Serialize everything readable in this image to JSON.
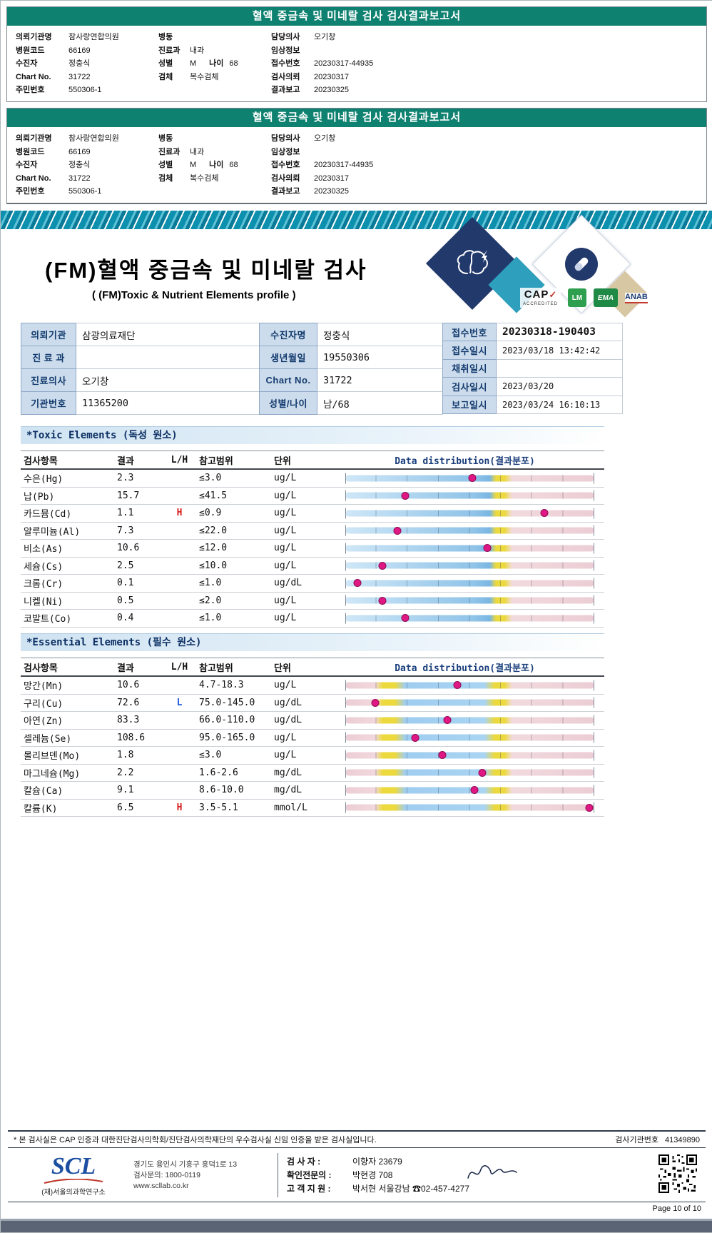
{
  "report_header": {
    "title": "혈액 중금속 및 미네랄 검사 검사결과보고서"
  },
  "header_blocks": [
    {
      "left": [
        {
          "label": "의뢰기관명",
          "value": "참사랑연합의원"
        },
        {
          "label": "병원코드",
          "value": "66169"
        },
        {
          "label": "수진자",
          "value": "정충식"
        },
        {
          "label": "Chart No.",
          "value": "31722"
        },
        {
          "label": "주민번호",
          "value": "550306-1"
        }
      ],
      "mid": [
        {
          "label": "병동",
          "value": ""
        },
        {
          "label": "진료과",
          "value": "내과"
        },
        {
          "label": "성별",
          "value": "M",
          "label2": "나이",
          "value2": "68"
        },
        {
          "label": "검체",
          "value": "복수검체"
        }
      ],
      "right": [
        {
          "label": "담당의사",
          "value": "오기창"
        },
        {
          "label": "임상정보",
          "value": ""
        },
        {
          "label": "접수번호",
          "value": "20230317-44935"
        },
        {
          "label": "검사의뢰",
          "value": "20230317"
        },
        {
          "label": "결과보고",
          "value": "20230325"
        }
      ]
    },
    {
      "left": [
        {
          "label": "의뢰기관명",
          "value": "참사랑연합의원"
        },
        {
          "label": "병원코드",
          "value": "66169"
        },
        {
          "label": "수진자",
          "value": "정충식"
        },
        {
          "label": "Chart No.",
          "value": "31722"
        },
        {
          "label": "주민번호",
          "value": "550306-1"
        }
      ],
      "mid": [
        {
          "label": "병동",
          "value": ""
        },
        {
          "label": "진료과",
          "value": "내과"
        },
        {
          "label": "성별",
          "value": "M",
          "label2": "나이",
          "value2": "68"
        },
        {
          "label": "검체",
          "value": "복수검체"
        }
      ],
      "right": [
        {
          "label": "담당의사",
          "value": "오기창"
        },
        {
          "label": "임상정보",
          "value": ""
        },
        {
          "label": "접수번호",
          "value": "20230317-44935"
        },
        {
          "label": "검사의뢰",
          "value": "20230317"
        },
        {
          "label": "결과보고",
          "value": "20230325"
        }
      ]
    }
  ],
  "deco": {
    "cap_label": "CAP",
    "cap_check": "✓",
    "cap_sub": "ACCREDITED",
    "green_badge_1": "LM",
    "green_badge_2": "EMA",
    "anab_label": "ANAB"
  },
  "report": {
    "title": "(FM)혈액 중금속 및 미네랄 검사",
    "subtitle": "( (FM)Toxic & Nutrient Elements profile )",
    "info_left": [
      {
        "label": "의뢰기관",
        "value": "삼광의료재단"
      },
      {
        "label": "진 료 과",
        "value": ""
      },
      {
        "label": "진료의사",
        "value": "오기창"
      },
      {
        "label": "기관번호",
        "value": "11365200"
      }
    ],
    "info_mid": [
      {
        "label": "수진자명",
        "value": "정충식"
      },
      {
        "label": "생년월일",
        "value": "19550306"
      },
      {
        "label": "Chart No.",
        "value": "31722"
      },
      {
        "label": "성별/나이",
        "value": "남/68"
      }
    ],
    "info_right": [
      {
        "label": "접수번호",
        "value": "20230318-190403"
      },
      {
        "label": "접수일시",
        "value": "2023/03/18 13:42:42"
      },
      {
        "label": "채취일시",
        "value": ""
      },
      {
        "label": "검사일시",
        "value": "2023/03/20"
      },
      {
        "label": "보고일시",
        "value": "2023/03/24 16:10:13"
      }
    ]
  },
  "assay_columns": [
    "검사항목",
    "결과",
    "L/H",
    "참고범위",
    "단위",
    "Data distribution(결과분포)"
  ],
  "toxic": {
    "title": "*Toxic Elements (독성 원소)",
    "rows": [
      {
        "name": "수은(Hg)",
        "result": "2.3",
        "flag": "",
        "range": "≤3.0",
        "unit": "ug/L",
        "marker": 51
      },
      {
        "name": "납(Pb)",
        "result": "15.7",
        "flag": "",
        "range": "≤41.5",
        "unit": "ug/L",
        "marker": 24
      },
      {
        "name": "카드뮴(Cd)",
        "result": "1.1",
        "flag": "H",
        "range": "≤0.9",
        "unit": "ug/L",
        "marker": 80
      },
      {
        "name": "알루미늄(Al)",
        "result": "7.3",
        "flag": "",
        "range": "≤22.0",
        "unit": "ug/L",
        "marker": 21
      },
      {
        "name": "비소(As)",
        "result": "10.6",
        "flag": "",
        "range": "≤12.0",
        "unit": "ug/L",
        "marker": 57
      },
      {
        "name": "세슘(Cs)",
        "result": "2.5",
        "flag": "",
        "range": "≤10.0",
        "unit": "ug/L",
        "marker": 15
      },
      {
        "name": "크롬(Cr)",
        "result": "0.1",
        "flag": "",
        "range": "≤1.0",
        "unit": "ug/dL",
        "marker": 5
      },
      {
        "name": "니켈(Ni)",
        "result": "0.5",
        "flag": "",
        "range": "≤2.0",
        "unit": "ug/L",
        "marker": 15
      },
      {
        "name": "코발트(Co)",
        "result": "0.4",
        "flag": "",
        "range": "≤1.0",
        "unit": "ug/L",
        "marker": 24
      }
    ]
  },
  "essential": {
    "title": "*Essential Elements (필수 원소)",
    "rows": [
      {
        "name": "망간(Mn)",
        "result": "10.6",
        "flag": "",
        "range": "4.7-18.3",
        "unit": "ug/L",
        "marker": 45
      },
      {
        "name": "구리(Cu)",
        "result": "72.6",
        "flag": "L",
        "range": "75.0-145.0",
        "unit": "ug/dL",
        "marker": 12
      },
      {
        "name": "아연(Zn)",
        "result": "83.3",
        "flag": "",
        "range": "66.0-110.0",
        "unit": "ug/dL",
        "marker": 41
      },
      {
        "name": "셀레늄(Se)",
        "result": "108.6",
        "flag": "",
        "range": "95.0-165.0",
        "unit": "ug/L",
        "marker": 28
      },
      {
        "name": "몰리브덴(Mo)",
        "result": "1.8",
        "flag": "",
        "range": "≤3.0",
        "unit": "ug/L",
        "marker": 39
      },
      {
        "name": "마그네슘(Mg)",
        "result": "2.2",
        "flag": "",
        "range": "1.6-2.6",
        "unit": "mg/dL",
        "marker": 55
      },
      {
        "name": "칼슘(Ca)",
        "result": "9.1",
        "flag": "",
        "range": "8.6-10.0",
        "unit": "mg/dL",
        "marker": 52
      },
      {
        "name": "칼륨(K)",
        "result": "6.5",
        "flag": "H",
        "range": "3.5-5.1",
        "unit": "mmol/L",
        "marker": 98
      }
    ]
  },
  "footer": {
    "disclaimer": "* 본 검사실은 CAP 인증과 대한진단검사의학회/진단검사의학재단의 우수검사실 신임 인증을 받은 검사실입니다.",
    "org_no_label": "검사기관번호",
    "org_no": "41349890",
    "logo": "SCL",
    "org_name": "(재)서울의과학연구소",
    "address": "경기도 용인시 기흥구 흥덕1로 13",
    "inquiry": "검사문의: 1800-0119",
    "website": "www.scllab.co.kr",
    "staff": [
      {
        "label": "검 사 자 :",
        "value": "이향자 23679"
      },
      {
        "label": "확인전문의 :",
        "value": "박현경 708"
      },
      {
        "label": "고 객 지 원 :",
        "value": "박서현 서울강남 ☎02-457-4277"
      }
    ],
    "page": "Page 10 of 10"
  }
}
